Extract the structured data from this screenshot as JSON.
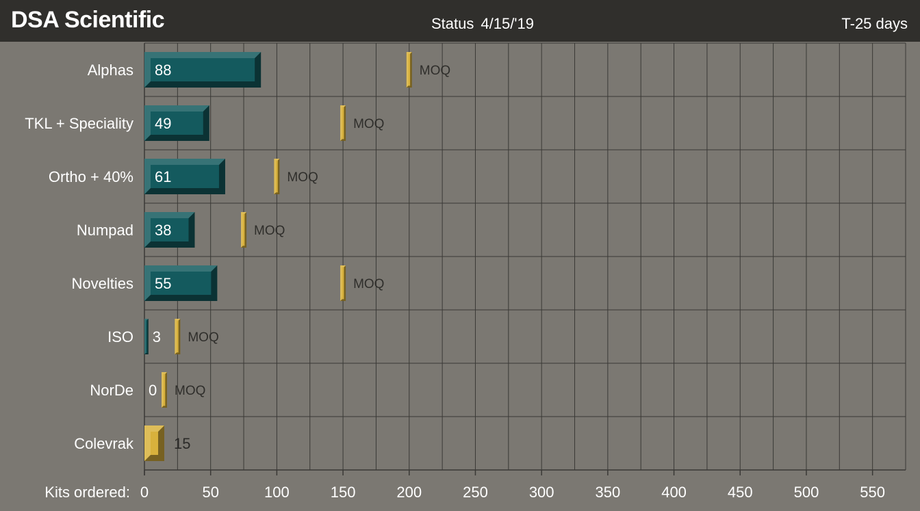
{
  "header": {
    "brand": "DSA Scientific",
    "status_label": "Status",
    "status_date": "4/15/'19",
    "countdown": "T-25 days"
  },
  "colors": {
    "background": "#7b7872",
    "header": "#302f2c",
    "bar": "#145a5e",
    "moq_marker": "#d8b13c",
    "grid": "#3a3936"
  },
  "chart_data": {
    "type": "bar",
    "orientation": "horizontal",
    "xlabel": "Kits ordered:",
    "xlim": [
      0,
      575
    ],
    "xticks": [
      0,
      50,
      100,
      150,
      200,
      250,
      300,
      350,
      400,
      450,
      500,
      550
    ],
    "grid": true,
    "categories": [
      "Alphas",
      "TKL + Speciality",
      "Ortho + 40%",
      "Numpad",
      "Novelties",
      "ISO",
      "NorDe",
      "Colevrak"
    ],
    "series": [
      {
        "values": [
          88,
          49,
          61,
          38,
          55,
          3,
          0,
          15
        ]
      }
    ],
    "moq": [
      200,
      150,
      100,
      75,
      150,
      25,
      15,
      null
    ],
    "moq_label": "MOQ",
    "bar_colors": [
      "#145a5e",
      "#145a5e",
      "#145a5e",
      "#145a5e",
      "#145a5e",
      "#145a5e",
      "#145a5e",
      "#d8b13c"
    ]
  }
}
